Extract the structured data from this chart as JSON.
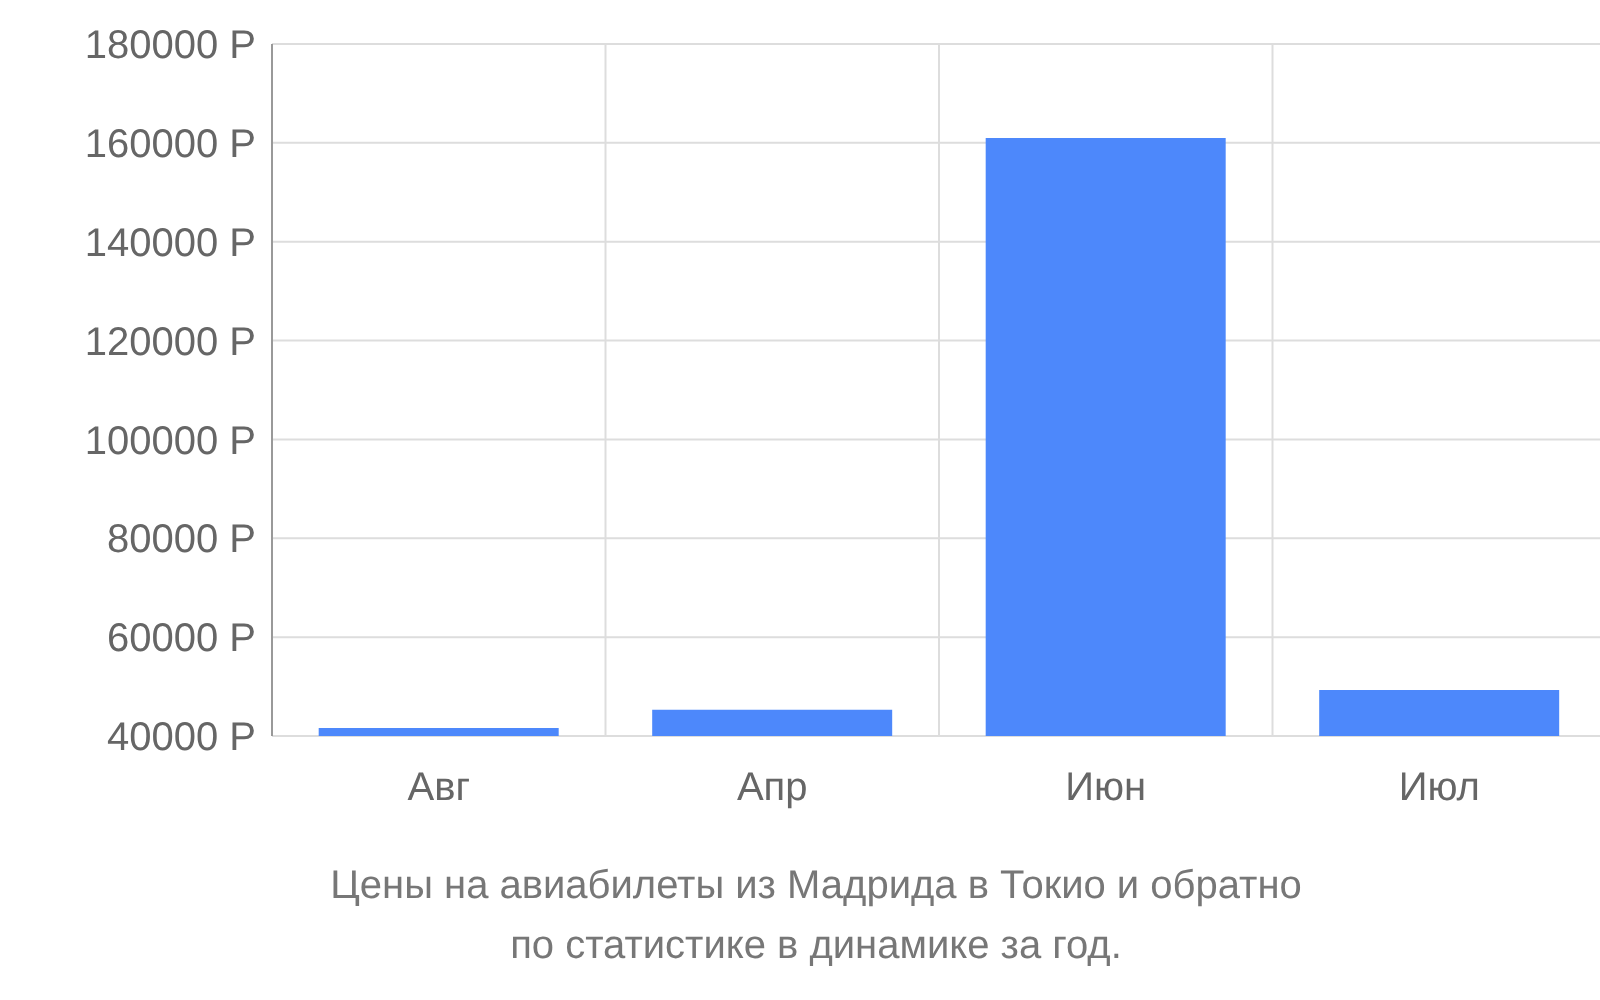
{
  "chart_data": {
    "type": "bar",
    "categories": [
      "Авг",
      "Апр",
      "Июн",
      "Июл"
    ],
    "values": [
      41600,
      45300,
      161000,
      49300
    ],
    "color": "#4d88fb",
    "ylim": [
      40000,
      180000
    ],
    "yticks": [
      {
        "value": 40000,
        "label": "40000 Р"
      },
      {
        "value": 60000,
        "label": "60000 Р"
      },
      {
        "value": 80000,
        "label": "80000 Р"
      },
      {
        "value": 100000,
        "label": "100000 Р"
      },
      {
        "value": 120000,
        "label": "120000 Р"
      },
      {
        "value": 140000,
        "label": "140000 Р"
      },
      {
        "value": 160000,
        "label": "160000 Р"
      },
      {
        "value": 180000,
        "label": "180000 Р"
      }
    ],
    "grid": true,
    "annotations": [
      "Цены на авиабилеты из Мадрида в Токио и обратно",
      "по статистике в динамике за год."
    ]
  }
}
